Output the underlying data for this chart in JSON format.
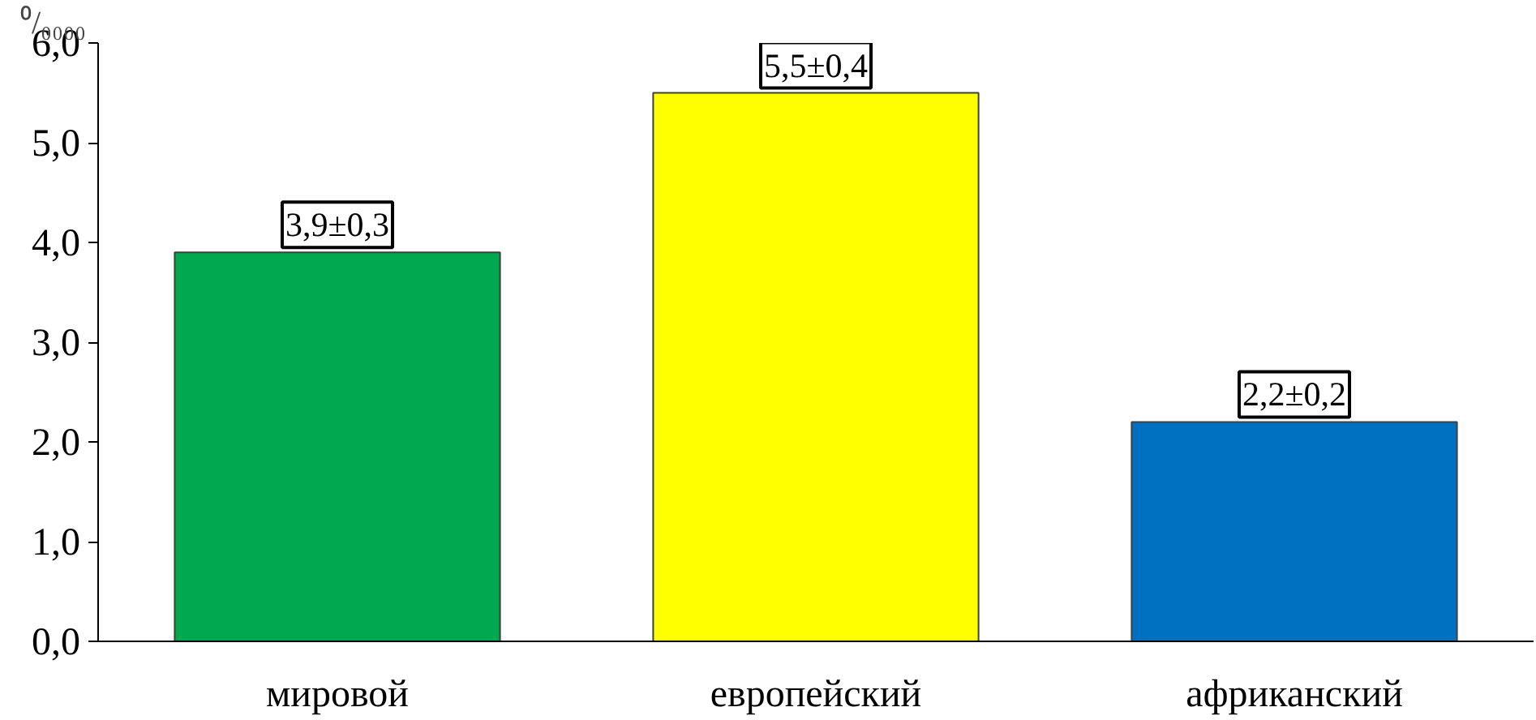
{
  "chart_data": {
    "type": "bar",
    "ylabel": "⁰/₀₀₀₀",
    "categories": [
      "мировой",
      "европейский",
      "африканский"
    ],
    "values": [
      3.9,
      5.5,
      2.2
    ],
    "colors": [
      "#00a84f",
      "#ffff00",
      "#0070c0"
    ],
    "value_labels": [
      "3,9±0,3",
      "5,5±0,4",
      "2,2±0,2"
    ],
    "ylim": [
      0,
      6
    ],
    "yticks": [
      {
        "value": 0,
        "label": "0,0"
      },
      {
        "value": 1,
        "label": "1,0"
      },
      {
        "value": 2,
        "label": "2,0"
      },
      {
        "value": 3,
        "label": "3,0"
      },
      {
        "value": 4,
        "label": "4,0"
      },
      {
        "value": 5,
        "label": "5,0"
      },
      {
        "value": 6,
        "label": "6,0"
      }
    ],
    "grid": false
  }
}
